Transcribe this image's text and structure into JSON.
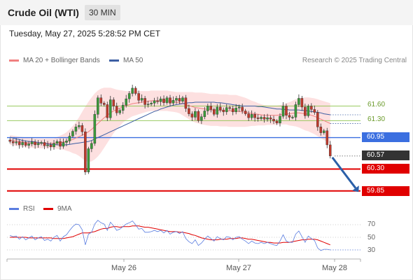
{
  "header": {
    "instrument": "Crude Oil (WTI)",
    "timeframe": "30 MIN"
  },
  "datetime": "Tuesday, May 27, 2025 5:28:52 PM CET",
  "legend": {
    "ma20": {
      "label": "MA 20 + Bollinger Bands",
      "color": "#f08080"
    },
    "ma50": {
      "label": "MA 50",
      "color": "#3d5fa3"
    },
    "rsi": {
      "label": "RSI",
      "color": "#5a7de0"
    },
    "ma9": {
      "label": "9MA",
      "color": "#e00000"
    }
  },
  "credit": "Research © 2025 Trading Central",
  "chart_data": {
    "type": "candlestick",
    "x_ticks": [
      "May 26",
      "May 27",
      "May 28"
    ],
    "y_range": [
      59.6,
      62.2
    ],
    "current_price": 60.57,
    "levels": [
      {
        "label": "61.60",
        "value": 61.6,
        "kind": "resistance",
        "color": "#8bc34a"
      },
      {
        "label": "61.30",
        "value": 61.3,
        "kind": "resistance",
        "color": "#8bc34a"
      },
      {
        "label": "60.95",
        "value": 60.95,
        "kind": "pivot",
        "color": "#3b6fe0"
      },
      {
        "label": "60.57",
        "value": 60.57,
        "kind": "last",
        "color": "#333333"
      },
      {
        "label": "60.30",
        "value": 60.3,
        "kind": "support",
        "color": "#e00000"
      },
      {
        "label": "59.85",
        "value": 59.85,
        "kind": "support",
        "color": "#e00000"
      }
    ],
    "arrow": {
      "from": 60.57,
      "to": 59.85,
      "color": "#2a5fa8"
    },
    "candles_close": [
      60.87,
      60.84,
      60.86,
      60.8,
      60.85,
      60.79,
      60.82,
      60.86,
      60.8,
      60.83,
      60.85,
      60.78,
      60.8,
      60.76,
      60.83,
      60.87,
      60.77,
      60.85,
      60.88,
      60.98,
      61.08,
      61.17,
      61.2,
      61.07,
      60.24,
      60.72,
      60.83,
      61.43,
      61.77,
      61.66,
      61.63,
      61.36,
      61.73,
      61.6,
      61.46,
      61.51,
      61.62,
      61.75,
      61.86,
      61.97,
      61.86,
      61.72,
      61.76,
      61.63,
      61.64,
      61.66,
      61.71,
      61.69,
      61.75,
      61.67,
      61.77,
      61.66,
      61.72,
      61.76,
      61.7,
      61.77,
      61.55,
      61.44,
      61.37,
      61.49,
      61.3,
      61.38,
      61.5,
      61.6,
      61.53,
      61.43,
      61.58,
      61.52,
      61.48,
      61.57,
      61.55,
      61.48,
      61.56,
      61.58,
      61.5,
      61.44,
      61.36,
      61.43,
      61.36,
      61.34,
      61.37,
      61.33,
      61.36,
      61.33,
      61.29,
      61.25,
      61.39,
      61.6,
      61.41,
      61.37,
      61.37,
      61.63,
      61.76,
      61.58,
      61.4,
      61.6,
      61.53,
      61.47,
      61.17,
      61.05,
      61.09,
      60.8,
      60.57
    ],
    "ma20": [
      60.9,
      60.89,
      60.88,
      60.87,
      60.86,
      60.85,
      60.84,
      60.84,
      60.83,
      60.83,
      60.83,
      60.83,
      60.83,
      60.83,
      60.83,
      60.84,
      60.85,
      60.86,
      60.87,
      60.89,
      60.91,
      60.94,
      60.97,
      61.0,
      61.03,
      61.07,
      61.12,
      61.18,
      61.24,
      61.3,
      61.36,
      61.41,
      61.46,
      61.5,
      61.53,
      61.56,
      61.59,
      61.61,
      61.63,
      61.65,
      61.66,
      61.67,
      61.68,
      61.69,
      61.7,
      61.71,
      61.71,
      61.71,
      61.71,
      61.71,
      61.71,
      61.7,
      61.69,
      61.68,
      61.67,
      61.65,
      61.63,
      61.61,
      61.59,
      61.57,
      61.56,
      61.55,
      61.54,
      61.53,
      61.52,
      61.52,
      61.52,
      61.51,
      61.51,
      61.51,
      61.5,
      61.5,
      61.5,
      61.49,
      61.48,
      61.47,
      61.46,
      61.45,
      61.44,
      61.43,
      61.42,
      61.41,
      61.41,
      61.41,
      61.41,
      61.41,
      61.42,
      61.43,
      61.44,
      61.44,
      61.45,
      61.46,
      61.46,
      61.45,
      61.44,
      61.43,
      61.41,
      61.39,
      61.36,
      61.33,
      61.3,
      61.27,
      61.24
    ],
    "ma50": [
      60.96,
      60.94,
      60.92,
      60.91,
      60.89,
      60.88,
      60.87,
      60.87,
      60.86,
      60.85,
      60.84,
      60.83,
      60.82,
      60.81,
      60.81,
      60.8,
      60.8,
      60.8,
      60.8,
      60.81,
      60.82,
      60.83,
      60.84,
      60.85,
      60.86,
      60.87,
      60.89,
      60.92,
      60.95,
      60.98,
      61.01,
      61.04,
      61.07,
      61.1,
      61.13,
      61.16,
      61.19,
      61.22,
      61.25,
      61.28,
      61.31,
      61.34,
      61.37,
      61.4,
      61.43,
      61.46,
      61.49,
      61.51,
      61.54,
      61.56,
      61.58,
      61.6,
      61.62,
      61.63,
      61.64,
      61.65,
      61.66,
      61.67,
      61.67,
      61.68,
      61.68,
      61.68,
      61.68,
      61.68,
      61.68,
      61.68,
      61.67,
      61.67,
      61.66,
      61.65,
      61.64,
      61.63,
      61.62,
      61.61,
      61.6,
      61.6,
      61.6,
      61.6,
      61.6,
      61.59,
      61.59,
      61.58,
      61.57,
      61.56,
      61.55,
      61.54,
      61.54,
      61.53,
      61.53,
      61.52,
      61.52,
      61.52,
      61.52,
      61.51,
      61.51,
      61.5,
      61.49,
      61.48,
      61.47,
      61.46,
      61.44,
      61.43,
      61.42
    ],
    "bollinger_width": [
      0.1,
      0.1,
      0.1,
      0.1,
      0.1,
      0.1,
      0.1,
      0.1,
      0.1,
      0.1,
      0.1,
      0.1,
      0.1,
      0.1,
      0.1,
      0.12,
      0.14,
      0.16,
      0.19,
      0.23,
      0.28,
      0.33,
      0.4,
      0.48,
      0.56,
      0.62,
      0.66,
      0.68,
      0.68,
      0.66,
      0.62,
      0.57,
      0.52,
      0.46,
      0.41,
      0.37,
      0.33,
      0.3,
      0.28,
      0.26,
      0.25,
      0.24,
      0.23,
      0.22,
      0.21,
      0.21,
      0.21,
      0.21,
      0.21,
      0.21,
      0.21,
      0.21,
      0.21,
      0.21,
      0.22,
      0.24,
      0.26,
      0.28,
      0.3,
      0.31,
      0.32,
      0.33,
      0.33,
      0.33,
      0.33,
      0.33,
      0.33,
      0.33,
      0.33,
      0.33,
      0.33,
      0.33,
      0.33,
      0.32,
      0.31,
      0.3,
      0.28,
      0.26,
      0.25,
      0.23,
      0.22,
      0.21,
      0.2,
      0.2,
      0.2,
      0.2,
      0.2,
      0.21,
      0.22,
      0.24,
      0.26,
      0.28,
      0.3,
      0.32,
      0.34,
      0.35,
      0.36,
      0.37,
      0.38,
      0.39,
      0.4,
      0.41,
      0.42
    ],
    "rsi": {
      "y_ticks": [
        70,
        50,
        30
      ],
      "range": [
        20,
        80
      ],
      "values": [
        53,
        51,
        52,
        47,
        51,
        46,
        49,
        52,
        46,
        49,
        51,
        45,
        47,
        44,
        50,
        53,
        44,
        51,
        54,
        61,
        67,
        71,
        70,
        62,
        38,
        55,
        58,
        71,
        77,
        73,
        71,
        61,
        74,
        68,
        61,
        63,
        67,
        71,
        73,
        76,
        70,
        63,
        64,
        58,
        58,
        59,
        61,
        59,
        61,
        57,
        61,
        55,
        58,
        59,
        56,
        59,
        48,
        43,
        40,
        46,
        37,
        41,
        47,
        52,
        48,
        44,
        51,
        48,
        46,
        51,
        50,
        46,
        50,
        51,
        47,
        44,
        40,
        44,
        41,
        40,
        42,
        40,
        42,
        40,
        38,
        37,
        44,
        54,
        44,
        42,
        42,
        55,
        60,
        51,
        42,
        52,
        48,
        45,
        33,
        29,
        31,
        31,
        30
      ],
      "ma9": [
        50,
        50,
        50,
        50,
        50,
        50,
        49,
        49,
        49,
        49,
        49,
        49,
        49,
        49,
        48,
        48,
        48,
        48,
        49,
        50,
        51,
        53,
        55,
        57,
        57,
        57,
        58,
        59,
        61,
        63,
        64,
        64,
        66,
        67,
        67,
        66,
        67,
        67,
        67,
        68,
        68,
        68,
        67,
        66,
        66,
        65,
        64,
        63,
        62,
        61,
        60,
        59,
        59,
        59,
        58,
        58,
        57,
        56,
        54,
        53,
        51,
        49,
        48,
        47,
        46,
        46,
        46,
        47,
        47,
        47,
        48,
        48,
        48,
        49,
        49,
        48,
        47,
        47,
        46,
        45,
        44,
        43,
        42,
        42,
        41,
        41,
        41,
        42,
        42,
        42,
        43,
        44,
        45,
        46,
        46,
        47,
        47,
        47,
        46,
        44,
        42,
        40,
        38
      ]
    }
  }
}
